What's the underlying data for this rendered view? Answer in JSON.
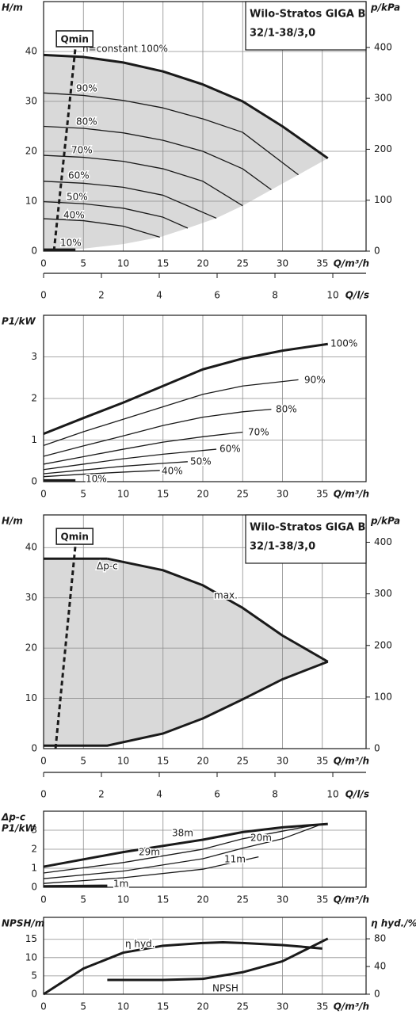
{
  "chart_data": [
    {
      "type": "line",
      "title": "Wilo-Stratos GIGA B",
      "subtitle": "32/1-38/3,0",
      "y_label": [
        "H/m"
      ],
      "y2_label": "p/kPa",
      "x_label": "Q/m³/h",
      "x2_label": "Q/l/s",
      "xlim": [
        0,
        40.5
      ],
      "xticks": [
        0,
        5,
        10,
        15,
        20,
        25,
        30,
        35
      ],
      "ylim": [
        0,
        50
      ],
      "yticks": [
        0,
        10,
        20,
        30,
        40
      ],
      "y2lim": [
        0,
        490
      ],
      "y2ticks": [
        0,
        100,
        200,
        300,
        400
      ],
      "x2lim": [
        0,
        11.15
      ],
      "x2ticks": [
        0,
        2,
        4,
        6,
        8,
        10
      ],
      "grid": true,
      "color": "#1a1a1a",
      "fill": "#d9d9d9",
      "range_boundary": {
        "style": "none",
        "x": [
          35.7,
          32,
          28.6,
          25,
          21.7,
          18.1,
          14.6,
          10,
          5,
          0
        ],
        "values": [
          18.6,
          15.3,
          12.3,
          9.1,
          6.6,
          4.6,
          2.8,
          1.4,
          0.5,
          0
        ]
      },
      "series": [
        {
          "name": "n=constant 100%",
          "style": "thick",
          "outline": true,
          "x": [
            0,
            5,
            10,
            15,
            20,
            25,
            30,
            35.7
          ],
          "values": [
            39.3,
            38.9,
            37.8,
            36,
            33.4,
            30,
            25,
            18.6
          ]
        },
        {
          "name": "90%",
          "style": "thin",
          "x": [
            0,
            5,
            10,
            15,
            20,
            25,
            32
          ],
          "values": [
            31.7,
            31.2,
            30.2,
            28.7,
            26.5,
            23.8,
            15.3
          ]
        },
        {
          "name": "80%",
          "style": "thin",
          "x": [
            0,
            5,
            10,
            15,
            20,
            25,
            28.6
          ],
          "values": [
            25,
            24.6,
            23.7,
            22.2,
            20,
            16.5,
            12.3
          ]
        },
        {
          "name": "70%",
          "style": "thin",
          "x": [
            0,
            5,
            10,
            15,
            20,
            25
          ],
          "values": [
            19.2,
            18.8,
            18,
            16.5,
            14,
            9.1
          ]
        },
        {
          "name": "60%",
          "style": "thin",
          "x": [
            0,
            5,
            10,
            15,
            21.7
          ],
          "values": [
            14,
            13.6,
            12.8,
            11.2,
            6.6
          ]
        },
        {
          "name": "50%",
          "style": "thin",
          "x": [
            0,
            5,
            10,
            15,
            18.1
          ],
          "values": [
            9.9,
            9.5,
            8.6,
            6.8,
            4.6
          ]
        },
        {
          "name": "40%",
          "style": "thin",
          "x": [
            0,
            5,
            10,
            14.6
          ],
          "values": [
            6.5,
            6.1,
            5,
            2.8
          ]
        },
        {
          "name": "10%",
          "style": "thick",
          "x": [
            0,
            4
          ],
          "values": [
            0.3,
            0.3
          ]
        },
        {
          "name": "Qmin",
          "style": "dash",
          "x": [
            1.3,
            4
          ],
          "values": [
            0,
            40.8
          ]
        }
      ]
    },
    {
      "type": "line",
      "y_label": [
        "P1/kW"
      ],
      "x_label": "Q/m³/h",
      "xlim": [
        0,
        40.5
      ],
      "xticks": [
        0,
        5,
        10,
        15,
        20,
        25,
        30,
        35
      ],
      "ylim": [
        0,
        4
      ],
      "yticks": [
        0,
        1,
        2,
        3
      ],
      "grid": true,
      "color": "#1a1a1a",
      "series": [
        {
          "name": "100%",
          "style": "thick",
          "x": [
            0,
            5,
            10,
            15,
            20,
            25,
            30,
            35.7
          ],
          "values": [
            1.15,
            1.53,
            1.9,
            2.3,
            2.7,
            2.96,
            3.15,
            3.31
          ]
        },
        {
          "name": "90%",
          "style": "thin",
          "x": [
            0,
            5,
            10,
            15,
            20,
            25,
            32
          ],
          "values": [
            0.87,
            1.2,
            1.5,
            1.8,
            2.1,
            2.3,
            2.45
          ]
        },
        {
          "name": "80%",
          "style": "thin",
          "x": [
            0,
            5,
            10,
            15,
            20,
            25,
            28.6
          ],
          "values": [
            0.61,
            0.86,
            1.1,
            1.35,
            1.55,
            1.68,
            1.74
          ]
        },
        {
          "name": "70%",
          "style": "thin",
          "x": [
            0,
            5,
            10,
            15,
            20,
            25
          ],
          "values": [
            0.42,
            0.6,
            0.78,
            0.95,
            1.08,
            1.19
          ]
        },
        {
          "name": "60%",
          "style": "thin",
          "x": [
            0,
            5,
            10,
            15,
            21.7
          ],
          "values": [
            0.29,
            0.42,
            0.55,
            0.66,
            0.78
          ]
        },
        {
          "name": "50%",
          "style": "thin",
          "x": [
            0,
            5,
            10,
            15,
            18.1
          ],
          "values": [
            0.19,
            0.28,
            0.37,
            0.44,
            0.48
          ]
        },
        {
          "name": "40%",
          "style": "thin",
          "x": [
            0,
            5,
            10,
            14.6
          ],
          "values": [
            0.12,
            0.18,
            0.23,
            0.27
          ]
        },
        {
          "name": "10%",
          "style": "thick",
          "x": [
            0,
            4
          ],
          "values": [
            0.03,
            0.03
          ]
        }
      ]
    },
    {
      "type": "line",
      "title": "Wilo-Stratos GIGA B",
      "subtitle": "32/1-38/3,0",
      "y_label": [
        "H/m"
      ],
      "y2_label": "p/kPa",
      "x_label": "Q/m³/h",
      "x2_label": "Q/l/s",
      "xlim": [
        0,
        40.5
      ],
      "xticks": [
        0,
        5,
        10,
        15,
        20,
        25,
        30,
        35
      ],
      "ylim": [
        0,
        46.5
      ],
      "yticks": [
        0,
        10,
        20,
        30,
        40
      ],
      "y2lim": [
        0,
        453
      ],
      "y2ticks": [
        0,
        100,
        200,
        300,
        400
      ],
      "x2lim": [
        0,
        11.15
      ],
      "x2ticks": [
        0,
        2,
        4,
        6,
        8,
        10
      ],
      "grid": true,
      "color": "#1a1a1a",
      "fill": "#d9d9d9",
      "range_boundary": {
        "style": "thick",
        "x": [
          35.7,
          30,
          25,
          20,
          15,
          8,
          0
        ],
        "values": [
          17.3,
          13.8,
          9.8,
          6,
          3,
          0.6,
          0.6
        ]
      },
      "series": [
        {
          "name": "Δp-c",
          "style": "thick",
          "outline": true,
          "x": [
            0,
            8
          ],
          "values": [
            37.8,
            37.8
          ]
        },
        {
          "name": "max.",
          "style": "thick",
          "outline": true,
          "x": [
            8,
            15,
            20,
            25,
            30,
            35.7
          ],
          "values": [
            37.8,
            35.5,
            32.5,
            28,
            22.5,
            17.3
          ]
        },
        {
          "name": "Qmin",
          "style": "dash",
          "x": [
            1.5,
            4
          ],
          "values": [
            0,
            40.5
          ]
        }
      ]
    },
    {
      "type": "line",
      "y_label": [
        "Δp-c",
        "P1/kW"
      ],
      "x_label": "Q/m³/h",
      "xlim": [
        0,
        40.5
      ],
      "xticks": [
        0,
        5,
        10,
        15,
        20,
        25,
        30,
        35
      ],
      "ylim": [
        0,
        4
      ],
      "yticks": [
        0,
        1,
        2,
        3
      ],
      "grid": true,
      "color": "#1a1a1a",
      "series": [
        {
          "name": "38m",
          "style": "thick",
          "x": [
            0,
            10,
            20,
            25,
            30,
            35.7
          ],
          "values": [
            1.08,
            1.85,
            2.5,
            2.9,
            3.15,
            3.33
          ]
        },
        {
          "name": "29m",
          "style": "thin",
          "x": [
            0,
            10,
            20,
            25,
            30,
            34.5
          ],
          "values": [
            0.75,
            1.3,
            2,
            2.55,
            2.95,
            3.3
          ]
        },
        {
          "name": "20m",
          "style": "thin",
          "x": [
            0,
            10,
            20,
            25,
            30,
            34.5
          ],
          "values": [
            0.45,
            0.85,
            1.5,
            2.05,
            2.55,
            3.25
          ]
        },
        {
          "name": "11m",
          "style": "thin",
          "x": [
            0,
            10,
            20,
            27
          ],
          "values": [
            0.2,
            0.5,
            0.95,
            1.6
          ]
        },
        {
          "name": "1m",
          "style": "thick",
          "x": [
            0,
            8
          ],
          "values": [
            0.05,
            0.08
          ]
        }
      ]
    },
    {
      "type": "line",
      "y_label": [
        "NPSH/m"
      ],
      "y2_label": "η hyd./%",
      "x_label": "Q/m³/h",
      "xlim": [
        0,
        40.5
      ],
      "xticks": [
        0,
        5,
        10,
        15,
        20,
        25,
        30,
        35
      ],
      "ylim": [
        0,
        21
      ],
      "yticks": [
        0,
        5,
        10,
        15
      ],
      "y2lim": [
        0,
        111
      ],
      "y2ticks": [
        0,
        40,
        80
      ],
      "grid": true,
      "color": "#1a1a1a",
      "series": [
        {
          "name": "η hyd.",
          "style": "thick",
          "axis": "y2",
          "x": [
            0,
            5,
            10,
            15,
            20,
            22.5,
            25,
            30,
            35
          ],
          "values": [
            0,
            37,
            60,
            70,
            74,
            75,
            74,
            71,
            66
          ]
        },
        {
          "name": "NPSH",
          "style": "thick",
          "x": [
            8,
            15,
            20,
            25,
            30,
            35.7
          ],
          "values": [
            3.9,
            3.9,
            4.2,
            6,
            9,
            15.2
          ]
        }
      ]
    }
  ]
}
